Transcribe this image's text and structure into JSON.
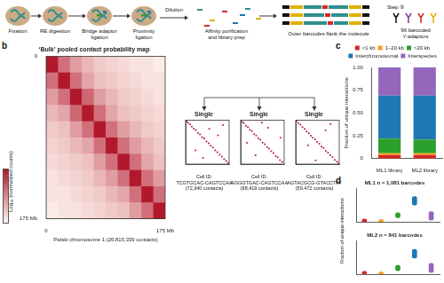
{
  "panel_labels": [
    "b",
    "c",
    "d"
  ],
  "schematic": {
    "steps": [
      [
        "Fixation"
      ],
      [
        "RE digestion"
      ],
      [
        "Bridge adaptor",
        "ligation"
      ],
      [
        "Proximity",
        "ligation"
      ]
    ],
    "dilution": "Dilution",
    "library": [
      "Affinity purification",
      "and library prep"
    ],
    "outer": "Outer barcodes flank the molecule",
    "step5": "Step ⑤",
    "adaptors": [
      "96 barcoded",
      "Y-adaptors"
    ]
  },
  "chart_data": [
    {
      "type": "heatmap",
      "title": "‘Bulk’ pooled contact probability map",
      "xlabel": "Patski chromosome 1 (26,815,339 contacts)",
      "colorbar_label": "Log₁₀ (normalized counts)",
      "color": "#b2182b",
      "color_range": [
        -3.5,
        -1
      ],
      "xlim": [
        0,
        175
      ],
      "ylim": [
        0,
        175
      ],
      "xticks": [
        0,
        {
          "value": 175,
          "label": "175 Mb"
        }
      ],
      "yticks": [
        0,
        {
          "value": 175,
          "label": "175 Mb"
        }
      ],
      "cells": [
        [
          -1.0,
          -2.0,
          -2.5,
          -2.8,
          -3.0,
          -3.1,
          -3.2,
          -3.3,
          -3.3,
          -3.4
        ],
        [
          -2.0,
          -1.0,
          -2.0,
          -2.6,
          -2.9,
          -3.0,
          -3.1,
          -3.2,
          -3.3,
          -3.3
        ],
        [
          -2.5,
          -2.0,
          -1.0,
          -1.9,
          -2.5,
          -2.8,
          -3.0,
          -3.1,
          -3.2,
          -3.3
        ],
        [
          -2.8,
          -2.6,
          -1.9,
          -1.0,
          -2.0,
          -2.6,
          -2.9,
          -3.0,
          -3.1,
          -3.2
        ],
        [
          -3.0,
          -2.9,
          -2.5,
          -2.0,
          -1.0,
          -2.0,
          -2.5,
          -2.8,
          -3.0,
          -3.1
        ],
        [
          -3.1,
          -3.0,
          -2.8,
          -2.6,
          -2.0,
          -1.0,
          -2.0,
          -2.5,
          -2.8,
          -3.0
        ],
        [
          -3.2,
          -3.1,
          -3.0,
          -2.9,
          -2.5,
          -2.0,
          -1.0,
          -2.0,
          -2.6,
          -2.9
        ],
        [
          -3.3,
          -3.2,
          -3.1,
          -3.0,
          -2.8,
          -2.5,
          -2.0,
          -1.0,
          -2.0,
          -2.5
        ],
        [
          -3.3,
          -3.3,
          -3.2,
          -3.1,
          -3.0,
          -2.8,
          -2.6,
          -2.0,
          -1.0,
          -2.0
        ],
        [
          -3.4,
          -3.3,
          -3.3,
          -3.2,
          -3.1,
          -3.0,
          -2.9,
          -2.5,
          -2.0,
          -1.0
        ]
      ]
    },
    {
      "type": "scatter",
      "title": "Single",
      "cell_id_label": "Cell ID:",
      "cell_id": "TCGTGCAC-CAGTCCAA",
      "contacts_label": "(72,340 contacts)",
      "color": "#b2182b",
      "xlim": [
        0,
        175
      ],
      "ylim": [
        0,
        175
      ],
      "tick_labels": false,
      "x": [
        4,
        10,
        18,
        25,
        33,
        41,
        50,
        58,
        67,
        75,
        84,
        93,
        101,
        110,
        119,
        128,
        137,
        146,
        155,
        164,
        172,
        40,
        95,
        130,
        70,
        150
      ],
      "y": [
        5,
        11,
        17,
        26,
        34,
        40,
        51,
        57,
        68,
        74,
        85,
        92,
        102,
        109,
        120,
        127,
        138,
        145,
        156,
        163,
        171,
        120,
        35,
        60,
        150,
        20
      ]
    },
    {
      "type": "scatter",
      "title": "Single",
      "cell_id_label": "Cell ID:",
      "cell_id": "AGGGTGAC-CAGTCCAA",
      "contacts_label": "(68,419 contacts)",
      "color": "#b2182b",
      "xlim": [
        0,
        175
      ],
      "ylim": [
        0,
        175
      ],
      "tick_labels": false,
      "x": [
        6,
        13,
        21,
        29,
        37,
        45,
        54,
        62,
        71,
        79,
        88,
        97,
        106,
        114,
        123,
        132,
        141,
        149,
        158,
        167,
        60,
        110,
        25,
        160,
        85
      ],
      "y": [
        7,
        12,
        22,
        28,
        38,
        44,
        55,
        61,
        72,
        78,
        89,
        96,
        107,
        113,
        124,
        131,
        142,
        148,
        159,
        166,
        140,
        30,
        90,
        70,
        10
      ]
    },
    {
      "type": "scatter",
      "title": "Single",
      "cell_id_label": "Cell ID:",
      "cell_id": "AGTACGCG-GTACCTAT",
      "contacts_label": "(59,472 contacts)",
      "color": "#b2182b",
      "xlim": [
        0,
        175
      ],
      "ylim": [
        0,
        175
      ],
      "tick_labels": false,
      "x": [
        3,
        11,
        19,
        27,
        36,
        44,
        53,
        61,
        69,
        78,
        86,
        95,
        104,
        112,
        121,
        130,
        139,
        148,
        157,
        166,
        173,
        50,
        120,
        80,
        140
      ],
      "y": [
        4,
        12,
        18,
        28,
        35,
        45,
        52,
        62,
        70,
        77,
        87,
        94,
        105,
        111,
        122,
        129,
        140,
        147,
        158,
        165,
        172,
        100,
        40,
        160,
        15
      ]
    },
    {
      "type": "bar",
      "stacked": true,
      "legend": "top",
      "ylabel": "Fraction of unique interactions",
      "categories": [
        "ML1 library",
        "ML2 library"
      ],
      "series": [
        {
          "name": "<1 kb",
          "color": "#d62728",
          "values": [
            0.04,
            0.04
          ]
        },
        {
          "name": "1–20 kb",
          "color": "#ff9f1c",
          "values": [
            0.02,
            0.02
          ]
        },
        {
          "name": ">20 kb",
          "color": "#2ca02c",
          "values": [
            0.16,
            0.15
          ]
        },
        {
          "name": "Interchromosomal",
          "color": "#1f77b4",
          "values": [
            0.47,
            0.48
          ]
        },
        {
          "name": "Interspecies",
          "color": "#9467bd",
          "values": [
            0.31,
            0.31
          ]
        }
      ],
      "ylim": [
        0,
        1
      ],
      "yticks": [
        0,
        0.25,
        {
          "value": 0.5,
          "label": "0.50"
        },
        0.75,
        {
          "value": 1,
          "label": "1.00"
        }
      ]
    },
    {
      "type": "violin",
      "title": "ML1 n = 1,081 barcodes",
      "ylabel": "Fraction of unique interactions",
      "categories": [
        null,
        null,
        null,
        null,
        null
      ],
      "colors": [
        "#d62728",
        "#ff9f1c",
        "#2ca02c",
        "#1f77b4",
        "#9467bd"
      ],
      "values": [
        0.03,
        0.02,
        0.19,
        0.62,
        0.14
      ],
      "low": [
        0.0,
        0.0,
        0.12,
        0.5,
        0.05
      ],
      "high": [
        0.07,
        0.05,
        0.27,
        0.75,
        0.3
      ],
      "ylim": [
        0,
        1
      ],
      "tick_labels": false
    },
    {
      "type": "violin",
      "title": "ML2 n = 841 barcodes",
      "categories": [
        null,
        null,
        null,
        null,
        null
      ],
      "colors": [
        "#d62728",
        "#ff9f1c",
        "#2ca02c",
        "#1f77b4",
        "#9467bd"
      ],
      "values": [
        0.03,
        0.02,
        0.18,
        0.6,
        0.15
      ],
      "low": [
        0.0,
        0.0,
        0.1,
        0.48,
        0.05
      ],
      "high": [
        0.08,
        0.05,
        0.26,
        0.74,
        0.32
      ],
      "ylim": [
        0,
        1
      ],
      "tick_labels": false
    }
  ]
}
